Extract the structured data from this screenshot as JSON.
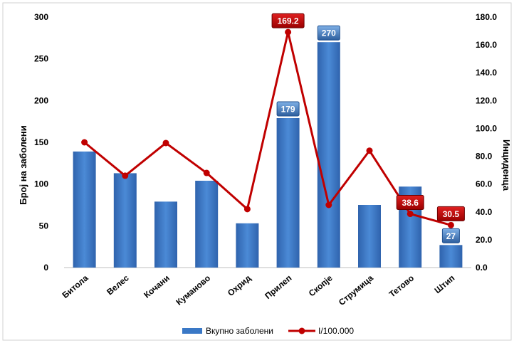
{
  "chart_data": {
    "type": "bar",
    "categories": [
      "Битола",
      "Велес",
      "Кочани",
      "Куманово",
      "Охрид",
      "Прилеп",
      "Скопје",
      "Струмица",
      "Тетово",
      "Штип"
    ],
    "series": [
      {
        "name": "Вкупно заболени",
        "type": "bar",
        "axis": "left",
        "color": "#3a78c6",
        "values": [
          139,
          113,
          79,
          104,
          53,
          179,
          270,
          75,
          97,
          27
        ]
      },
      {
        "name": "I/100.000",
        "type": "line",
        "axis": "right",
        "color": "#c00000",
        "values": [
          90,
          66,
          89.5,
          68,
          42,
          169.2,
          45,
          84,
          38.6,
          30.5
        ]
      }
    ],
    "data_labels": [
      {
        "series": 0,
        "index": 5,
        "text": "179"
      },
      {
        "series": 0,
        "index": 6,
        "text": "270"
      },
      {
        "series": 0,
        "index": 9,
        "text": "27"
      },
      {
        "series": 1,
        "index": 5,
        "text": "169.2"
      },
      {
        "series": 1,
        "index": 8,
        "text": "38.6"
      },
      {
        "series": 1,
        "index": 9,
        "text": "30.5"
      }
    ],
    "ylabel": "Број на заболени",
    "y2label": "Инциденца",
    "ylim": [
      0,
      300
    ],
    "y2lim": [
      0,
      180
    ],
    "yticks": [
      "0",
      "50",
      "100",
      "150",
      "200",
      "250",
      "300"
    ],
    "y2ticks": [
      "0.0",
      "20.0",
      "40.0",
      "60.0",
      "80.0",
      "100.0",
      "120.0",
      "140.0",
      "160.0",
      "180.0"
    ],
    "grid": false,
    "legend": "bottom"
  }
}
